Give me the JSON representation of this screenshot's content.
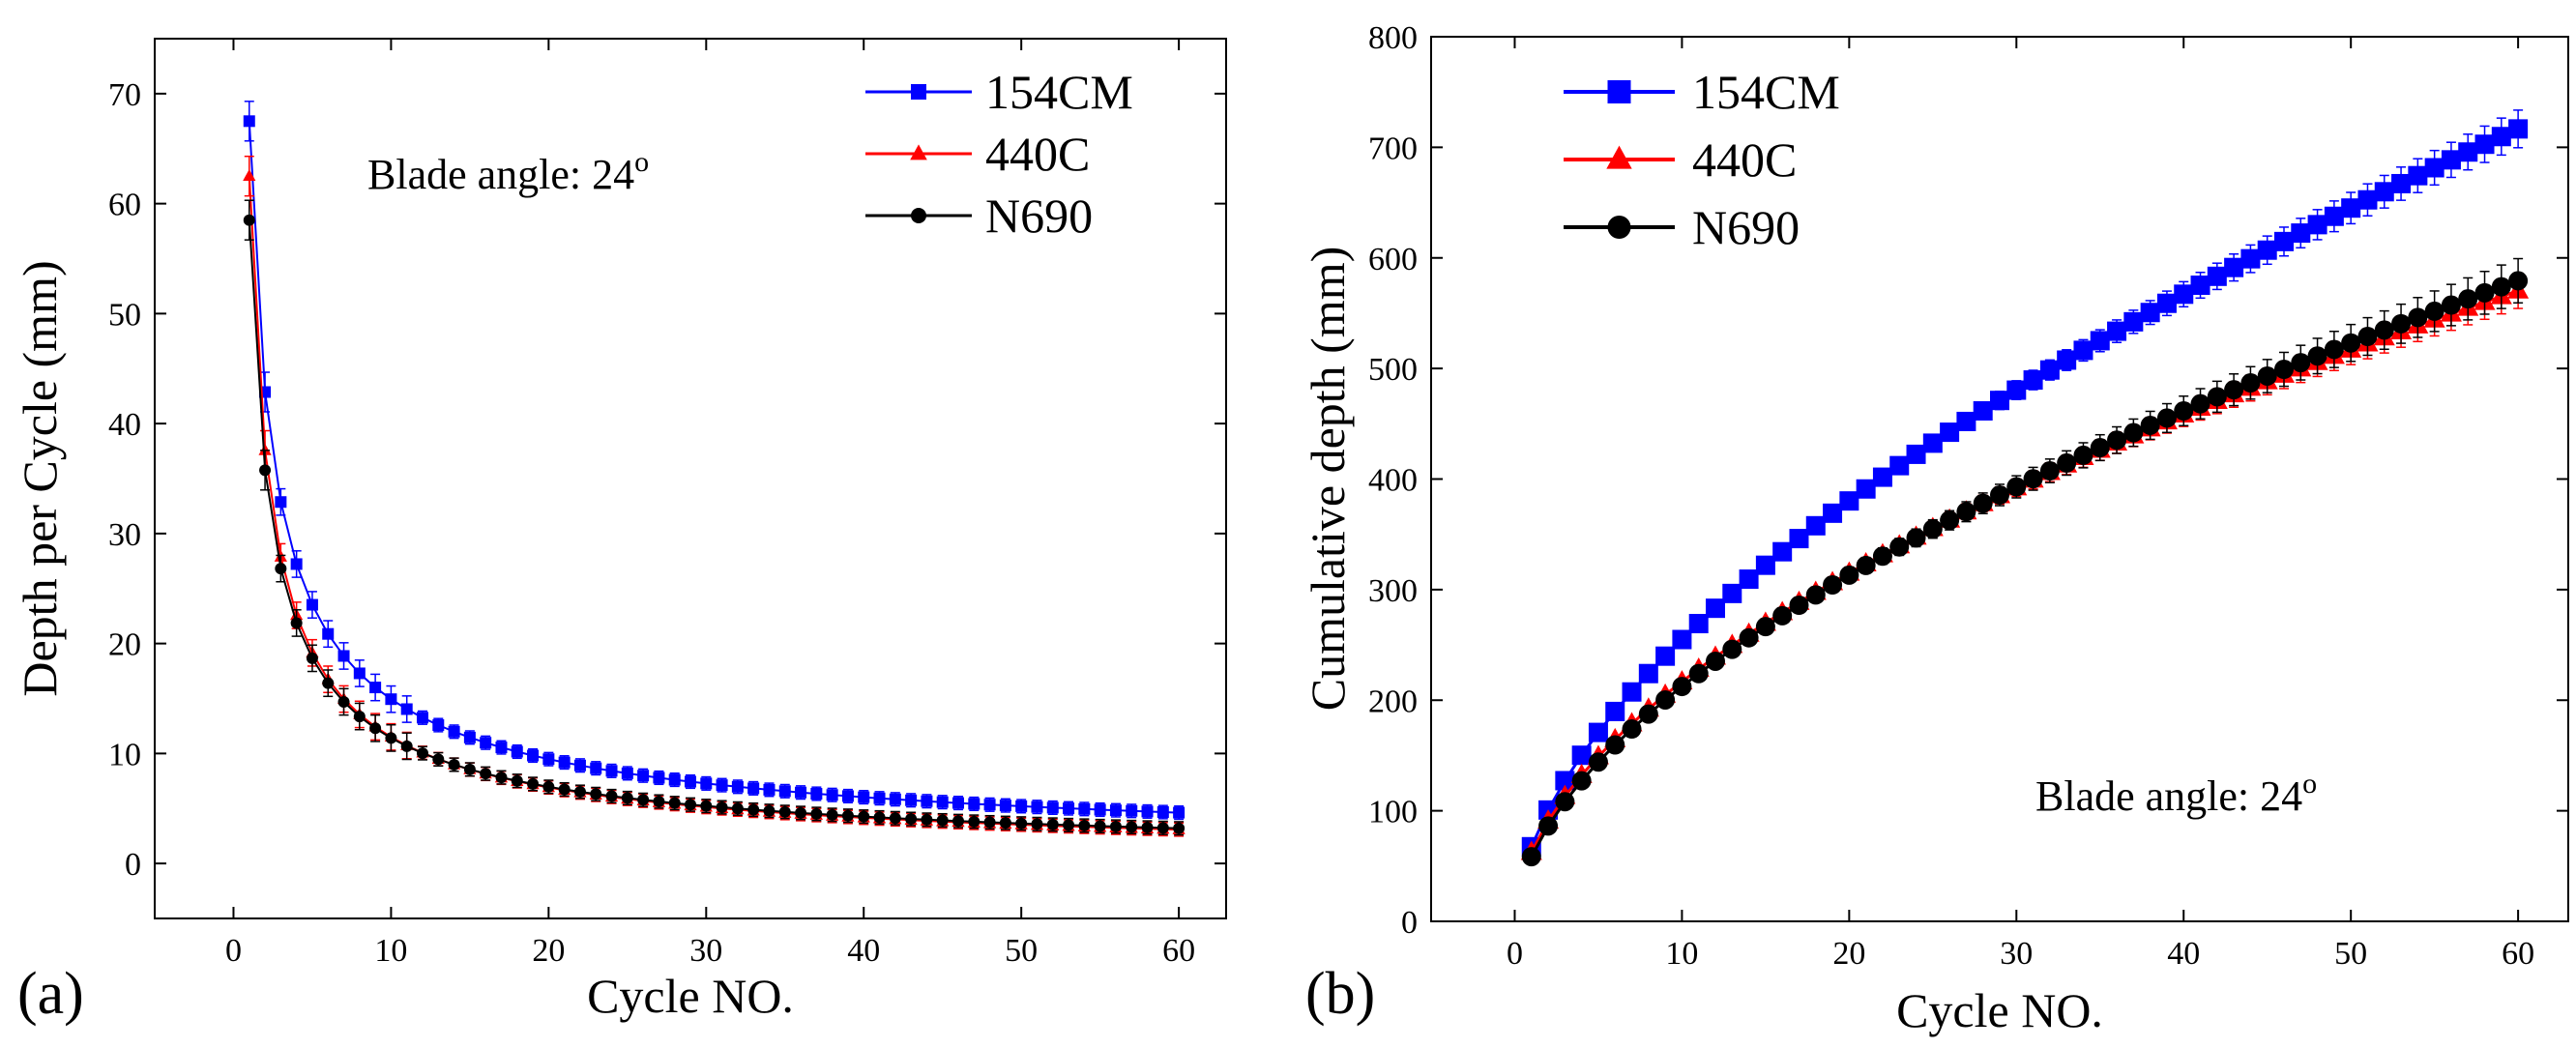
{
  "chart_data": [
    {
      "type": "line",
      "panel_label": "(a)",
      "xlabel": "Cycle NO.",
      "ylabel": "Depth per Cycle (mm)",
      "xlim": [
        -5,
        63
      ],
      "ylim": [
        -5,
        75
      ],
      "xticks": [
        0,
        10,
        20,
        30,
        40,
        50,
        60
      ],
      "yticks": [
        0,
        10,
        20,
        30,
        40,
        50,
        60,
        70
      ],
      "annotation": {
        "text": "Blade angle: 24",
        "sup": "o"
      },
      "legend_position": "top-right",
      "model": {
        "form": "power",
        "start": 1,
        "end": 60,
        "step": 1
      },
      "series": [
        {
          "name": "154CM",
          "color": "#0000ff",
          "marker": "square",
          "a": 67.5,
          "b": -0.655
        },
        {
          "name": "440C",
          "color": "#ff0000",
          "marker": "triangle",
          "a": 62.5,
          "b": -0.735
        },
        {
          "name": "N690",
          "color": "#000000",
          "marker": "circle",
          "a": 58.5,
          "b": -0.71
        }
      ]
    },
    {
      "type": "line",
      "panel_label": "(b)",
      "xlabel": "Cycle NO.",
      "ylabel": "Cumulative depth (mm)",
      "xlim": [
        -5,
        63
      ],
      "ylim": [
        0,
        800
      ],
      "xticks": [
        0,
        10,
        20,
        30,
        40,
        50,
        60
      ],
      "yticks": [
        0,
        100,
        200,
        300,
        400,
        500,
        600,
        700,
        800
      ],
      "annotation": {
        "text": "Blade angle: 24",
        "sup": "o"
      },
      "legend_position": "top-left",
      "model": {
        "form": "power",
        "start": 1,
        "end": 60,
        "step": 1
      },
      "series": [
        {
          "name": "154CM",
          "color": "#0000ff",
          "marker": "square",
          "a": 67.5,
          "b": 0.577,
          "error": 17
        },
        {
          "name": "440C",
          "color": "#ff0000",
          "marker": "triangle",
          "a": 62.5,
          "b": 0.54,
          "error": 16
        },
        {
          "name": "N690",
          "color": "#000000",
          "marker": "circle",
          "a": 58.5,
          "b": 0.56,
          "error": 20
        }
      ]
    }
  ]
}
